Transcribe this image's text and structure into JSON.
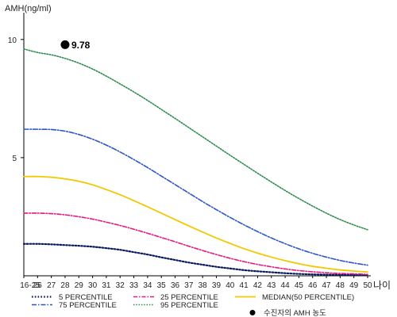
{
  "chart_data": {
    "type": "line",
    "ylabel": "AMH(ng/ml)",
    "x_unit_label": "나이",
    "categories": [
      "16-25",
      "26",
      "27",
      "28",
      "29",
      "30",
      "31",
      "32",
      "33",
      "34",
      "35",
      "36",
      "37",
      "38",
      "39",
      "40",
      "41",
      "42",
      "43",
      "44",
      "45",
      "46",
      "47",
      "48",
      "49",
      "50"
    ],
    "ylim": [
      0,
      11
    ],
    "yticks": [
      5,
      10
    ],
    "grid": false,
    "legend_position": "bottom",
    "colors": {
      "p5": "#0a1a5e",
      "p25": "#e6197e",
      "median": "#f2c800",
      "p75": "#2b56c8",
      "p95": "#2e8b4e",
      "patient_point": "#000000"
    },
    "series": [
      {
        "key": "p5",
        "name": "5 PERCENTILE",
        "values": [
          1.35,
          1.35,
          1.33,
          1.3,
          1.27,
          1.23,
          1.17,
          1.1,
          1.0,
          0.9,
          0.78,
          0.67,
          0.56,
          0.47,
          0.38,
          0.31,
          0.24,
          0.19,
          0.15,
          0.11,
          0.08,
          0.06,
          0.05,
          0.04,
          0.03,
          0.02
        ]
      },
      {
        "key": "p25",
        "name": "25 PERCENTILE",
        "values": [
          2.65,
          2.65,
          2.63,
          2.58,
          2.5,
          2.4,
          2.27,
          2.13,
          1.97,
          1.8,
          1.62,
          1.44,
          1.25,
          1.07,
          0.9,
          0.74,
          0.6,
          0.48,
          0.38,
          0.29,
          0.22,
          0.17,
          0.13,
          0.1,
          0.08,
          0.06
        ]
      },
      {
        "key": "median",
        "name": "MEDIAN(50 PERCENTILE)",
        "values": [
          4.2,
          4.2,
          4.17,
          4.1,
          4.0,
          3.85,
          3.65,
          3.43,
          3.18,
          2.92,
          2.65,
          2.38,
          2.11,
          1.85,
          1.6,
          1.37,
          1.15,
          0.96,
          0.79,
          0.64,
          0.51,
          0.4,
          0.32,
          0.25,
          0.2,
          0.16
        ]
      },
      {
        "key": "p75",
        "name": "75 PERCENTILE",
        "values": [
          6.2,
          6.2,
          6.19,
          6.12,
          5.98,
          5.78,
          5.53,
          5.24,
          4.92,
          4.58,
          4.22,
          3.86,
          3.5,
          3.14,
          2.8,
          2.47,
          2.16,
          1.87,
          1.6,
          1.36,
          1.14,
          0.95,
          0.79,
          0.65,
          0.54,
          0.45
        ]
      },
      {
        "key": "p95",
        "name": "95 PERCENTILE",
        "values": [
          9.6,
          9.45,
          9.35,
          9.2,
          9.0,
          8.75,
          8.45,
          8.12,
          7.78,
          7.42,
          7.04,
          6.66,
          6.27,
          5.88,
          5.49,
          5.1,
          4.72,
          4.34,
          3.97,
          3.61,
          3.27,
          2.95,
          2.65,
          2.38,
          2.15,
          1.95
        ]
      }
    ],
    "patient_point": {
      "name": "수진자의 AMH 농도",
      "x": "28",
      "y": 9.78,
      "label": "9.78"
    }
  }
}
